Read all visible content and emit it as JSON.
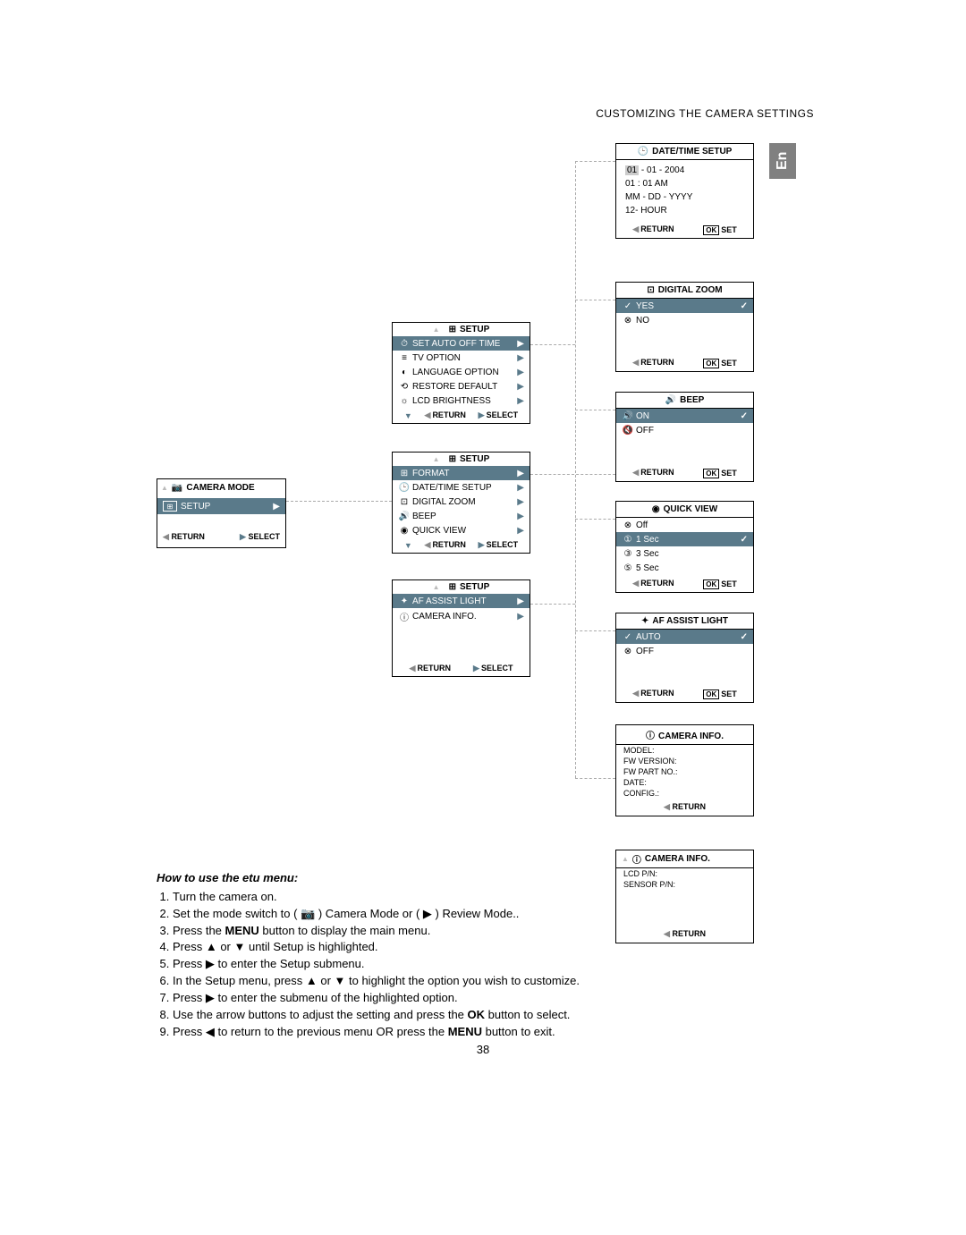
{
  "header": "CUSTOMIZING THE CAMERA SETTINGS",
  "lang_tab": "En",
  "page_number": "38",
  "camera_mode": {
    "title": "CAMERA MODE",
    "item": "SETUP",
    "footer_return": "RETURN",
    "footer_select": "SELECT"
  },
  "setup1": {
    "title": "SETUP",
    "items": [
      {
        "icon": "⏱",
        "label": "SET AUTO OFF TIME",
        "selected": true
      },
      {
        "icon": "≡",
        "label": "TV OPTION"
      },
      {
        "icon": "◐",
        "label": "LANGUAGE OPTION"
      },
      {
        "icon": "⟲",
        "label": "RESTORE DEFAULT"
      },
      {
        "icon": "☼",
        "label": "LCD BRIGHTNESS"
      }
    ],
    "footer_return": "RETURN",
    "footer_select": "SELECT"
  },
  "setup2": {
    "title": "SETUP",
    "items": [
      {
        "icon": "⊞",
        "label": "FORMAT",
        "selected": true
      },
      {
        "icon": "🕒",
        "label": "DATE/TIME SETUP"
      },
      {
        "icon": "⊡",
        "label": "DIGITAL ZOOM"
      },
      {
        "icon": "🔊",
        "label": "BEEP"
      },
      {
        "icon": "◉",
        "label": "QUICK VIEW"
      }
    ],
    "footer_return": "RETURN",
    "footer_select": "SELECT"
  },
  "setup3": {
    "title": "SETUP",
    "items": [
      {
        "icon": "✦",
        "label": "AF ASSIST LIGHT",
        "selected": true
      },
      {
        "icon": "ⓘ",
        "label": "CAMERA INFO."
      }
    ],
    "footer_return": "RETURN",
    "footer_select": "SELECT"
  },
  "datetime": {
    "title": "DATE/TIME SETUP",
    "lines": [
      "01 - 01 - 2004",
      "01 : 01 AM",
      "MM - DD - YYYY",
      "12- HOUR"
    ],
    "footer_return": "RETURN",
    "footer_set": "SET"
  },
  "digital_zoom": {
    "title": "DIGITAL  ZOOM",
    "items": [
      {
        "icon": "✓",
        "label": "YES",
        "selected": true,
        "check": true
      },
      {
        "icon": "⊗",
        "label": "NO"
      }
    ],
    "footer_return": "RETURN",
    "footer_set": "SET"
  },
  "beep": {
    "title": "BEEP",
    "items": [
      {
        "icon": "🔊",
        "label": "ON",
        "selected": true,
        "check": true
      },
      {
        "icon": "🔇",
        "label": "OFF"
      }
    ],
    "footer_return": "RETURN",
    "footer_set": "SET"
  },
  "quick_view": {
    "title": "QUICK VIEW",
    "items": [
      {
        "icon": "⊗",
        "label": "Off"
      },
      {
        "icon": "①",
        "label": "1 Sec",
        "selected": true,
        "check": true
      },
      {
        "icon": "③",
        "label": "3 Sec"
      },
      {
        "icon": "⑤",
        "label": "5 Sec"
      }
    ],
    "footer_return": "RETURN",
    "footer_set": "SET"
  },
  "af_assist": {
    "title": "AF ASSIST LIGHT",
    "items": [
      {
        "icon": "✓",
        "label": "AUTO",
        "selected": true,
        "check": true
      },
      {
        "icon": "⊗",
        "label": "OFF"
      }
    ],
    "footer_return": "RETURN",
    "footer_set": "SET"
  },
  "camera_info1": {
    "title": "CAMERA INFO.",
    "rows": [
      "MODEL:",
      "FW VERSION:",
      "FW PART NO.:",
      "DATE:",
      "CONFIG.:"
    ],
    "footer_return": "RETURN"
  },
  "camera_info2": {
    "title": "CAMERA INFO.",
    "rows": [
      "LCD P/N:",
      "SENSOR P/N:"
    ],
    "footer_return": "RETURN"
  },
  "instructions": {
    "title": "How to use  the etu menu:",
    "steps": [
      "Turn the camera on.",
      "Set the mode switch to ( 📷 ) Camera Mode or ( ▶ ) Review Mode..",
      "Press the MENU button to display the main menu.",
      "Press ▲ or ▼ until Setup is highlighted.",
      "Press ▶ to enter the Setup submenu.",
      "In the Setup menu, press ▲ or ▼ to highlight the option you wish to customize.",
      "Press ▶ to enter the submenu of the highlighted option.",
      "Use the arrow buttons to adjust the setting and press the OK button to select.",
      "Press ◀ to return to the previous menu OR press the MENU button to exit."
    ]
  }
}
